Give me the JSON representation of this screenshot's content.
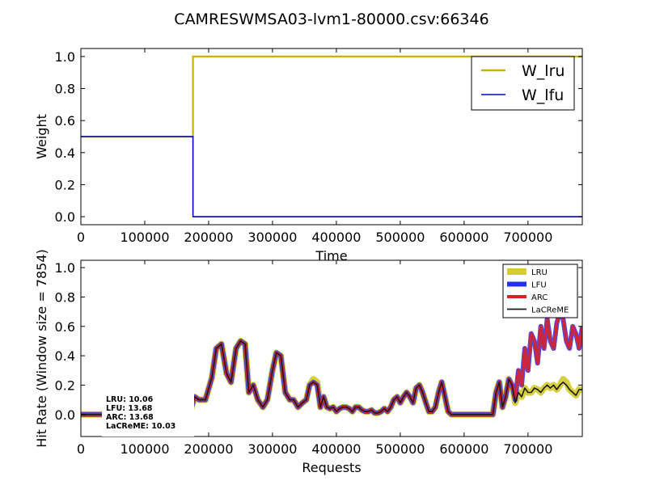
{
  "figure": {
    "title": "CAMRESWMSA03-lvm1-80000.csv:66346"
  },
  "chart_data": [
    {
      "type": "line",
      "xlabel": "Time",
      "ylabel": "Weight",
      "xlim": [
        0,
        785000
      ],
      "ylim": [
        -0.05,
        1.05
      ],
      "xticks": [
        0,
        100000,
        200000,
        300000,
        400000,
        500000,
        600000,
        700000
      ],
      "xtick_labels": [
        "0",
        "100000",
        "200000",
        "300000",
        "400000",
        "500000",
        "600000",
        "700000"
      ],
      "yticks": [
        0.0,
        0.2,
        0.4,
        0.6,
        0.8,
        1.0
      ],
      "ytick_labels": [
        "0.0",
        "0.2",
        "0.4",
        "0.6",
        "0.8",
        "1.0"
      ],
      "grid": false,
      "legend_position": "top-right",
      "series": [
        {
          "name": "W_lru",
          "color": "#c8b400",
          "x": [
            0,
            175500,
            175500,
            785000
          ],
          "y": [
            0.5,
            0.5,
            1.0,
            1.0
          ]
        },
        {
          "name": "W_lfu",
          "color": "#0000cc",
          "x": [
            0,
            175500,
            175500,
            785000
          ],
          "y": [
            0.5,
            0.5,
            0.0,
            0.0
          ]
        }
      ]
    },
    {
      "type": "line",
      "xlabel": "Requests",
      "ylabel": "Hit Rate (Window size = 7854)",
      "xlim": [
        0,
        785000
      ],
      "ylim": [
        -0.15,
        1.05
      ],
      "xticks": [
        0,
        100000,
        200000,
        300000,
        400000,
        500000,
        600000,
        700000
      ],
      "xtick_labels": [
        "0",
        "100000",
        "200000",
        "300000",
        "400000",
        "500000",
        "600000",
        "700000"
      ],
      "yticks": [
        0.0,
        0.2,
        0.4,
        0.6,
        0.8,
        1.0
      ],
      "ytick_labels": [
        "0.0",
        "0.2",
        "0.4",
        "0.6",
        "0.8",
        "1.0"
      ],
      "grid": false,
      "legend_position": "top-right",
      "annotation": [
        "LRU:  10.06",
        "LFU:  13.68",
        "ARC:  13.68",
        "LaCReME:  10.03"
      ],
      "x": [
        0,
        170000,
        178000,
        185000,
        195000,
        205000,
        212000,
        220000,
        228000,
        235000,
        243000,
        250000,
        257000,
        263000,
        270000,
        277000,
        285000,
        292000,
        300000,
        306000,
        313000,
        320000,
        327000,
        333000,
        340000,
        347000,
        353000,
        358000,
        364000,
        370000,
        375000,
        380000,
        385000,
        390000,
        395000,
        400000,
        405000,
        410000,
        415000,
        420000,
        425000,
        430000,
        435000,
        440000,
        445000,
        450000,
        455000,
        460000,
        465000,
        470000,
        475000,
        480000,
        485000,
        490000,
        495000,
        500000,
        505000,
        510000,
        515000,
        520000,
        525000,
        530000,
        535000,
        540000,
        545000,
        550000,
        555000,
        560000,
        565000,
        570000,
        575000,
        580000,
        585000,
        600000,
        645000,
        650000,
        655000,
        660000,
        665000,
        670000,
        675000,
        680000,
        685000,
        690000,
        695000,
        700000,
        705000,
        710000,
        715000,
        720000,
        725000,
        730000,
        735000,
        740000,
        745000,
        750000,
        755000,
        760000,
        765000,
        770000,
        775000,
        780000,
        785000
      ],
      "series": [
        {
          "name": "LRU",
          "color": "#c8c000",
          "values": [
            0,
            0,
            0.12,
            0.1,
            0.1,
            0.25,
            0.45,
            0.48,
            0.28,
            0.22,
            0.45,
            0.5,
            0.48,
            0.15,
            0.2,
            0.1,
            0.05,
            0.1,
            0.3,
            0.42,
            0.4,
            0.15,
            0.1,
            0.1,
            0.05,
            0.08,
            0.1,
            0.2,
            0.24,
            0.22,
            0.05,
            0.12,
            0.05,
            0.04,
            0.05,
            0.02,
            0.04,
            0.05,
            0.05,
            0.04,
            0.02,
            0.05,
            0.05,
            0.03,
            0.02,
            0.02,
            0.03,
            0.01,
            0.01,
            0.02,
            0.04,
            0.02,
            0.05,
            0.1,
            0.12,
            0.08,
            0.12,
            0.15,
            0.12,
            0.08,
            0.18,
            0.2,
            0.15,
            0.08,
            0.02,
            0.02,
            0.05,
            0.15,
            0.22,
            0.12,
            0.02,
            0.0,
            0.0,
            0.0,
            0.0,
            0.15,
            0.22,
            0.05,
            0.12,
            0.24,
            0.2,
            0.08,
            0.15,
            0.12,
            0.18,
            0.15,
            0.15,
            0.18,
            0.17,
            0.15,
            0.18,
            0.2,
            0.18,
            0.2,
            0.17,
            0.2,
            0.24,
            0.22,
            0.17,
            0.15,
            0.13,
            0.17,
            0.17
          ]
        },
        {
          "name": "LFU",
          "color": "#2030ff",
          "values": [
            0,
            0,
            0.12,
            0.1,
            0.1,
            0.25,
            0.45,
            0.48,
            0.28,
            0.22,
            0.45,
            0.5,
            0.48,
            0.15,
            0.2,
            0.1,
            0.05,
            0.1,
            0.3,
            0.42,
            0.4,
            0.15,
            0.1,
            0.1,
            0.05,
            0.08,
            0.1,
            0.2,
            0.22,
            0.2,
            0.05,
            0.12,
            0.05,
            0.04,
            0.05,
            0.02,
            0.04,
            0.05,
            0.05,
            0.04,
            0.02,
            0.05,
            0.05,
            0.03,
            0.02,
            0.02,
            0.03,
            0.01,
            0.01,
            0.02,
            0.04,
            0.02,
            0.05,
            0.1,
            0.12,
            0.08,
            0.12,
            0.15,
            0.12,
            0.08,
            0.18,
            0.2,
            0.15,
            0.08,
            0.02,
            0.02,
            0.05,
            0.15,
            0.22,
            0.12,
            0.02,
            0.0,
            0.0,
            0.0,
            0.0,
            0.15,
            0.22,
            0.05,
            0.12,
            0.24,
            0.2,
            0.1,
            0.3,
            0.2,
            0.45,
            0.3,
            0.55,
            0.5,
            0.35,
            0.6,
            0.45,
            0.65,
            0.5,
            0.45,
            0.62,
            0.7,
            0.65,
            0.5,
            0.45,
            0.6,
            0.55,
            0.45,
            0.6
          ]
        },
        {
          "name": "ARC",
          "color": "#e02020",
          "values": [
            0,
            0,
            0.12,
            0.1,
            0.1,
            0.25,
            0.45,
            0.48,
            0.28,
            0.22,
            0.45,
            0.5,
            0.48,
            0.15,
            0.2,
            0.1,
            0.05,
            0.1,
            0.3,
            0.42,
            0.4,
            0.15,
            0.1,
            0.1,
            0.05,
            0.08,
            0.1,
            0.2,
            0.22,
            0.2,
            0.05,
            0.12,
            0.05,
            0.04,
            0.05,
            0.02,
            0.04,
            0.05,
            0.05,
            0.04,
            0.02,
            0.05,
            0.05,
            0.03,
            0.02,
            0.02,
            0.03,
            0.01,
            0.01,
            0.02,
            0.04,
            0.02,
            0.05,
            0.1,
            0.12,
            0.08,
            0.12,
            0.15,
            0.12,
            0.08,
            0.18,
            0.2,
            0.15,
            0.08,
            0.02,
            0.02,
            0.05,
            0.15,
            0.22,
            0.12,
            0.02,
            0.0,
            0.0,
            0.0,
            0.0,
            0.15,
            0.22,
            0.05,
            0.12,
            0.24,
            0.2,
            0.1,
            0.3,
            0.2,
            0.45,
            0.3,
            0.55,
            0.5,
            0.35,
            0.6,
            0.45,
            0.65,
            0.5,
            0.45,
            0.62,
            0.7,
            0.65,
            0.5,
            0.45,
            0.6,
            0.55,
            0.45,
            0.6
          ]
        },
        {
          "name": "LaCReME",
          "color": "#1a1a1a",
          "values": [
            0,
            0,
            0.12,
            0.1,
            0.1,
            0.25,
            0.45,
            0.48,
            0.28,
            0.22,
            0.45,
            0.5,
            0.48,
            0.15,
            0.2,
            0.1,
            0.05,
            0.1,
            0.3,
            0.42,
            0.4,
            0.15,
            0.1,
            0.1,
            0.05,
            0.08,
            0.1,
            0.2,
            0.22,
            0.2,
            0.05,
            0.12,
            0.05,
            0.04,
            0.05,
            0.02,
            0.04,
            0.05,
            0.05,
            0.04,
            0.02,
            0.05,
            0.05,
            0.03,
            0.02,
            0.02,
            0.03,
            0.01,
            0.01,
            0.02,
            0.04,
            0.02,
            0.05,
            0.1,
            0.12,
            0.08,
            0.12,
            0.15,
            0.12,
            0.08,
            0.18,
            0.2,
            0.15,
            0.08,
            0.02,
            0.02,
            0.05,
            0.15,
            0.22,
            0.12,
            0.02,
            0.0,
            0.0,
            0.0,
            0.0,
            0.15,
            0.22,
            0.05,
            0.12,
            0.24,
            0.2,
            0.08,
            0.15,
            0.12,
            0.18,
            0.15,
            0.15,
            0.18,
            0.17,
            0.15,
            0.18,
            0.2,
            0.18,
            0.2,
            0.17,
            0.2,
            0.22,
            0.2,
            0.17,
            0.15,
            0.13,
            0.17,
            0.17
          ]
        }
      ]
    }
  ]
}
